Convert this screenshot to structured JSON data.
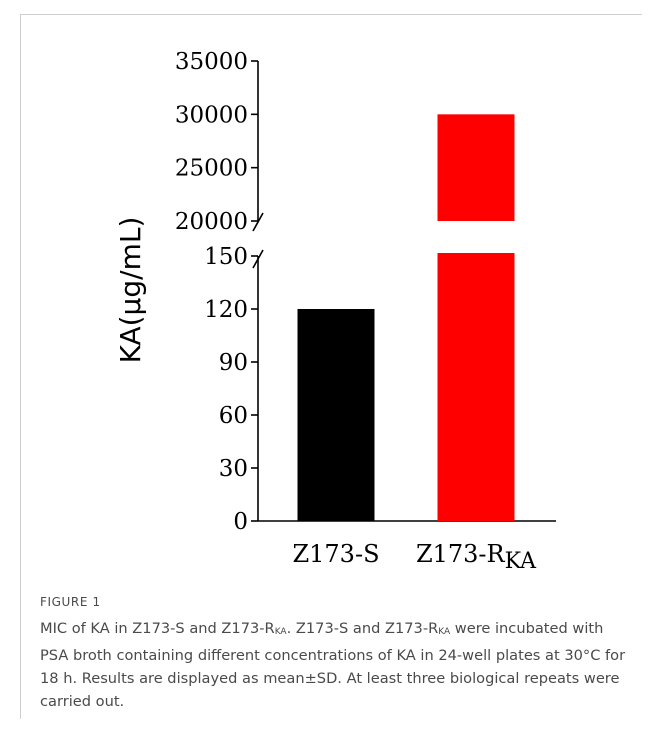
{
  "chart_data": {
    "type": "bar",
    "ylabel": "KA(µg/mL)",
    "categories": [
      {
        "base": "Z173-S",
        "sub": ""
      },
      {
        "base": "Z173-R",
        "sub": "KA"
      }
    ],
    "values": [
      120,
      30000
    ],
    "colors": [
      "#000000",
      "#ff0000"
    ],
    "axis_break": {
      "lower": {
        "min": 0,
        "max": 150,
        "ticks": [
          0,
          30,
          60,
          90,
          120,
          150
        ]
      },
      "upper": {
        "min": 20000,
        "max": 35000,
        "ticks": [
          20000,
          25000,
          30000,
          35000
        ]
      }
    },
    "grid": false,
    "legend": "none"
  },
  "caption": {
    "label": "FIGURE 1",
    "segments": [
      {
        "t": "MIC of KA in Z173-S and Z173-R",
        "sub": false
      },
      {
        "t": "KA",
        "sub": true
      },
      {
        "t": ". Z173-S and Z173-R",
        "sub": false
      },
      {
        "t": "KA",
        "sub": true
      },
      {
        "t": " were incubated with PSA broth containing different concentrations of KA in 24-well plates at 30°C for 18 h. Results are displayed as mean±SD. At least three biological repeats were carried out.",
        "sub": false
      }
    ]
  }
}
